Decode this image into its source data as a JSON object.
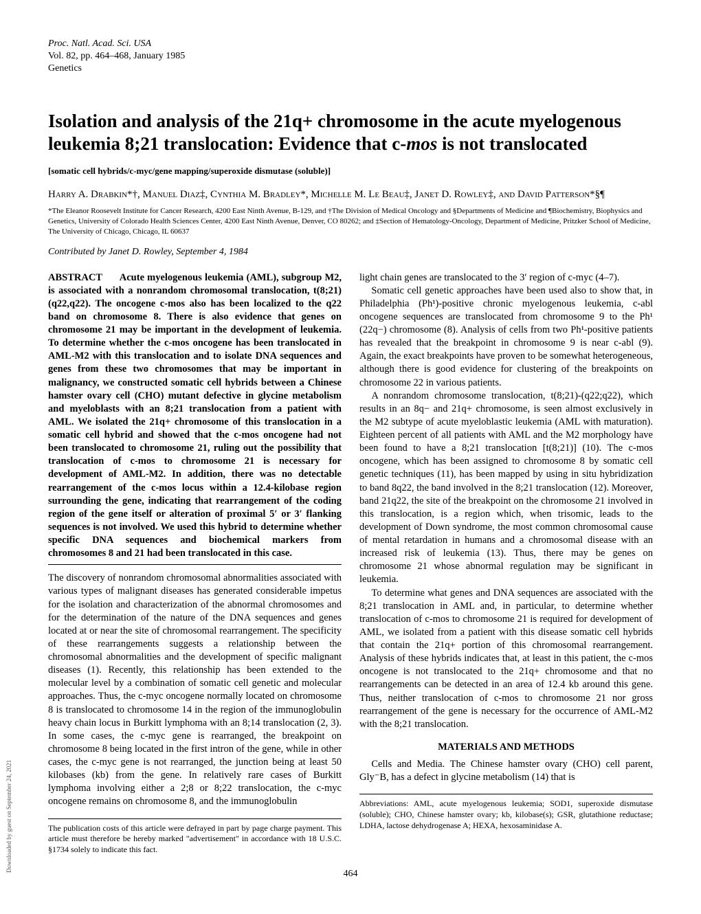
{
  "journal": {
    "name": "Proc. Natl. Acad. Sci. USA",
    "volume_line": "Vol. 82, pp. 464–468, January 1985",
    "section": "Genetics"
  },
  "title_parts": {
    "p1": "Isolation and analysis of the 21q+ chromosome in the acute myelogenous leukemia 8;21 translocation: Evidence that c-",
    "p2": "mos",
    "p3": " is not translocated"
  },
  "keywords": "[somatic cell hybrids/c-myc/gene mapping/superoxide dismutase (soluble)]",
  "authors": "Harry A. Drabkin*†, Manuel Diaz‡, Cynthia M. Bradley*, Michelle M. Le Beau‡, Janet D. Rowley‡, and David Patterson*§¶",
  "affiliations": "*The Eleanor Roosevelt Institute for Cancer Research, 4200 East Ninth Avenue, B-129, and †The Division of Medical Oncology and §Departments of Medicine and ¶Biochemistry, Biophysics and Genetics, University of Colorado Health Sciences Center, 4200 East Ninth Avenue, Denver, CO 80262; and ‡Section of Hematology-Oncology, Department of Medicine, Pritzker School of Medicine, The University of Chicago, Chicago, IL 60637",
  "contributed": "Contributed by Janet D. Rowley, September 4, 1984",
  "abstract_label": "ABSTRACT",
  "abstract_text": "Acute myelogenous leukemia (AML), subgroup M2, is associated with a nonrandom chromosomal translocation, t(8;21)(q22,q22). The oncogene c-mos also has been localized to the q22 band on chromosome 8. There is also evidence that genes on chromosome 21 may be important in the development of leukemia. To determine whether the c-mos oncogene has been translocated in AML-M2 with this translocation and to isolate DNA sequences and genes from these two chromosomes that may be important in malignancy, we constructed somatic cell hybrids between a Chinese hamster ovary cell (CHO) mutant defective in glycine metabolism and myeloblasts with an 8;21 translocation from a patient with AML. We isolated the 21q+ chromosome of this translocation in a somatic cell hybrid and showed that the c-mos oncogene had not been translocated to chromosome 21, ruling out the possibility that translocation of c-mos to chromosome 21 is necessary for development of AML-M2. In addition, there was no detectable rearrangement of the c-mos locus within a 12.4-kilobase region surrounding the gene, indicating that rearrangement of the coding region of the gene itself or alteration of proximal 5′ or 3′ flanking sequences is not involved. We used this hybrid to determine whether specific DNA sequences and biochemical markers from chromosomes 8 and 21 had been translocated in this case.",
  "left_body": [
    "The discovery of nonrandom chromosomal abnormalities associated with various types of malignant diseases has generated considerable impetus for the isolation and characterization of the abnormal chromosomes and for the determination of the nature of the DNA sequences and genes located at or near the site of chromosomal rearrangement. The specificity of these rearrangements suggests a relationship between the chromosomal abnormalities and the development of specific malignant diseases (1). Recently, this relationship has been extended to the molecular level by a combination of somatic cell genetic and molecular approaches. Thus, the c-myc oncogene normally located on chromosome 8 is translocated to chromosome 14 in the region of the immunoglobulin heavy chain locus in Burkitt lymphoma with an 8;14 translocation (2, 3). In some cases, the c-myc gene is rearranged, the breakpoint on chromosome 8 being located in the first intron of the gene, while in other cases, the c-myc gene is not rearranged, the junction being at least 50 kilobases (kb) from the gene. In relatively rare cases of Burkitt lymphoma involving either a 2;8 or 8;22 translocation, the c-myc oncogene remains on chromosome 8, and the immunoglobulin"
  ],
  "left_footnote": "The publication costs of this article were defrayed in part by page charge payment. This article must therefore be hereby marked \"advertisement\" in accordance with 18 U.S.C. §1734 solely to indicate this fact.",
  "right_body": [
    "light chain genes are translocated to the 3′ region of c-myc (4–7).",
    "Somatic cell genetic approaches have been used also to show that, in Philadelphia (Ph¹)-positive chronic myelogenous leukemia, c-abl oncogene sequences are translocated from chromosome 9 to the Ph¹ (22q−) chromosome (8). Analysis of cells from two Ph¹-positive patients has revealed that the breakpoint in chromosome 9 is near c-abl (9). Again, the exact breakpoints have proven to be somewhat heterogeneous, although there is good evidence for clustering of the breakpoints on chromosome 22 in various patients.",
    "A nonrandom chromosome translocation, t(8;21)-(q22;q22), which results in an 8q− and 21q+ chromosome, is seen almost exclusively in the M2 subtype of acute myeloblastic leukemia (AML with maturation). Eighteen percent of all patients with AML and the M2 morphology have been found to have a 8;21 translocation [t(8;21)] (10). The c-mos oncogene, which has been assigned to chromosome 8 by somatic cell genetic techniques (11), has been mapped by using in situ hybridization to band 8q22, the band involved in the 8;21 translocation (12). Moreover, band 21q22, the site of the breakpoint on the chromosome 21 involved in this translocation, is a region which, when trisomic, leads to the development of Down syndrome, the most common chromosomal cause of mental retardation in humans and a chromosomal disease with an increased risk of leukemia (13). Thus, there may be genes on chromosome 21 whose abnormal regulation may be significant in leukemia.",
    "To determine what genes and DNA sequences are associated with the 8;21 translocation in AML and, in particular, to determine whether translocation of c-mos to chromosome 21 is required for development of AML, we isolated from a patient with this disease somatic cell hybrids that contain the 21q+ portion of this chromosomal rearrangement. Analysis of these hybrids indicates that, at least in this patient, the c-mos oncogene is not translocated to the 21q+ chromosome and that no rearrangements can be detected in an area of 12.4 kb around this gene. Thus, neither translocation of c-mos to chromosome 21 nor gross rearrangement of the gene is necessary for the occurrence of AML-M2 with the 8;21 translocation."
  ],
  "materials_heading": "MATERIALS AND METHODS",
  "materials_para": "Cells and Media. The Chinese hamster ovary (CHO) cell parent, Gly⁻B, has a defect in glycine metabolism (14) that is",
  "right_footnote": "Abbreviations: AML, acute myelogenous leukemia; SOD1, superoxide dismutase (soluble); CHO, Chinese hamster ovary; kb, kilobase(s); GSR, glutathione reductase; LDHA, lactose dehydrogenase A; HEXA, hexosaminidase A.",
  "page_number": "464",
  "side_text": "Downloaded by guest on September 24, 2021"
}
